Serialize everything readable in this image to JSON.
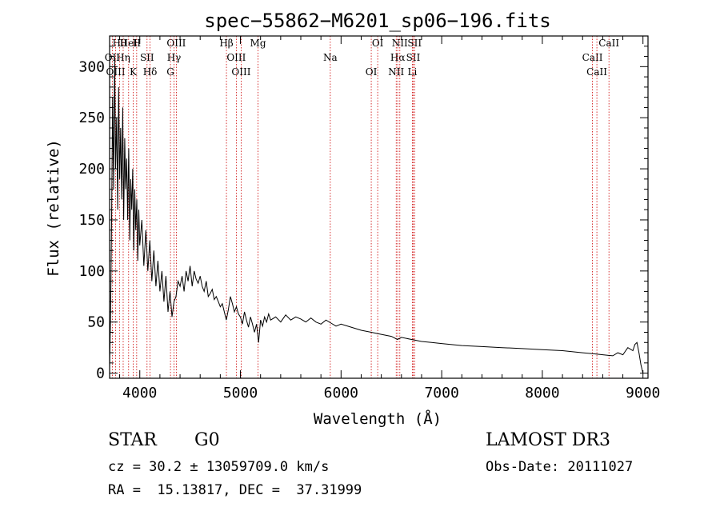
{
  "chart_data": {
    "type": "line",
    "title": "spec−55862−M6201_sp06−196.fits",
    "xlabel": "Wavelength (Å)",
    "ylabel": "Flux (relative)",
    "xlim": [
      3700,
      9050
    ],
    "ylim": [
      -5,
      330
    ],
    "xticks": [
      {
        "value": 4000,
        "label": "4000"
      },
      {
        "value": 5000,
        "label": "5000"
      },
      {
        "value": 6000,
        "label": "6000"
      },
      {
        "value": 7000,
        "label": "7000"
      },
      {
        "value": 8000,
        "label": "8000"
      },
      {
        "value": 9000,
        "label": "9000"
      }
    ],
    "yticks": [
      {
        "value": 0,
        "label": "0"
      },
      {
        "value": 50,
        "label": "50"
      },
      {
        "value": 100,
        "label": "100"
      },
      {
        "value": 150,
        "label": "150"
      },
      {
        "value": 200,
        "label": "200"
      },
      {
        "value": 250,
        "label": "250"
      },
      {
        "value": 300,
        "label": "300"
      }
    ],
    "series": [
      {
        "name": "flux",
        "x": [
          3700,
          3710,
          3720,
          3730,
          3740,
          3750,
          3760,
          3770,
          3780,
          3790,
          3800,
          3810,
          3820,
          3830,
          3840,
          3850,
          3860,
          3870,
          3880,
          3890,
          3900,
          3910,
          3920,
          3930,
          3940,
          3950,
          3960,
          3970,
          3980,
          3990,
          4000,
          4020,
          4040,
          4060,
          4080,
          4100,
          4120,
          4140,
          4160,
          4180,
          4200,
          4220,
          4240,
          4260,
          4280,
          4300,
          4320,
          4340,
          4360,
          4380,
          4400,
          4420,
          4440,
          4460,
          4480,
          4500,
          4520,
          4540,
          4560,
          4580,
          4600,
          4620,
          4640,
          4660,
          4680,
          4700,
          4720,
          4740,
          4760,
          4780,
          4800,
          4820,
          4840,
          4860,
          4880,
          4900,
          4920,
          4940,
          4960,
          4980,
          5000,
          5020,
          5040,
          5060,
          5080,
          5100,
          5120,
          5140,
          5160,
          5180,
          5200,
          5220,
          5240,
          5260,
          5280,
          5300,
          5350,
          5400,
          5450,
          5500,
          5550,
          5600,
          5650,
          5700,
          5750,
          5800,
          5850,
          5900,
          5950,
          6000,
          6100,
          6200,
          6300,
          6400,
          6500,
          6560,
          6600,
          6700,
          6800,
          6900,
          7000,
          7200,
          7400,
          7600,
          7800,
          8000,
          8200,
          8400,
          8500,
          8600,
          8700,
          8750,
          8800,
          8850,
          8900,
          8920,
          8940,
          8960,
          8980,
          9000
        ],
        "values": [
          5,
          60,
          150,
          270,
          180,
          310,
          200,
          250,
          160,
          280,
          190,
          240,
          170,
          260,
          150,
          230,
          180,
          210,
          150,
          220,
          130,
          190,
          160,
          200,
          120,
          180,
          140,
          170,
          110,
          160,
          125,
          150,
          105,
          140,
          100,
          130,
          90,
          120,
          85,
          110,
          80,
          100,
          70,
          95,
          60,
          80,
          55,
          70,
          75,
          90,
          85,
          95,
          80,
          100,
          90,
          105,
          85,
          100,
          92,
          88,
          95,
          85,
          80,
          90,
          75,
          78,
          82,
          72,
          75,
          70,
          65,
          68,
          60,
          52,
          62,
          75,
          68,
          60,
          65,
          58,
          55,
          48,
          60,
          52,
          45,
          55,
          48,
          40,
          48,
          30,
          52,
          46,
          55,
          50,
          58,
          52,
          55,
          50,
          57,
          52,
          55,
          53,
          50,
          54,
          50,
          48,
          52,
          49,
          46,
          48,
          45,
          42,
          40,
          38,
          36,
          33,
          35,
          33,
          31,
          30,
          29,
          27,
          26,
          25,
          24,
          23,
          22,
          20,
          19,
          18,
          17,
          20,
          18,
          25,
          22,
          28,
          30,
          20,
          8,
          0
        ]
      }
    ],
    "spectral_lines": [
      {
        "label": "Hθ",
        "wavelength": 3798
      },
      {
        "label": "OII",
        "wavelength": 3727
      },
      {
        "label": "OIII",
        "wavelength": 3760
      },
      {
        "label": "HeI",
        "wavelength": 3889
      },
      {
        "label": "Hη",
        "wavelength": 3835
      },
      {
        "label": "K",
        "wavelength": 3934
      },
      {
        "label": "H",
        "wavelength": 3969
      },
      {
        "label": "SII",
        "wavelength": 4072
      },
      {
        "label": "Hδ",
        "wavelength": 4102
      },
      {
        "label": "OIII",
        "wavelength": 4363
      },
      {
        "label": "Hγ",
        "wavelength": 4340
      },
      {
        "label": "G",
        "wavelength": 4305
      },
      {
        "label": "Hβ",
        "wavelength": 4861
      },
      {
        "label": "OIII",
        "wavelength": 4959
      },
      {
        "label": "OIII",
        "wavelength": 5007
      },
      {
        "label": "Mg",
        "wavelength": 5175
      },
      {
        "label": "Na",
        "wavelength": 5893
      },
      {
        "label": "OI",
        "wavelength": 6300
      },
      {
        "label": "OI",
        "wavelength": 6364
      },
      {
        "label": "Hα",
        "wavelength": 6563
      },
      {
        "label": "NII",
        "wavelength": 6548
      },
      {
        "label": "NII",
        "wavelength": 6584
      },
      {
        "label": "SII",
        "wavelength": 6717
      },
      {
        "label": "Li",
        "wavelength": 6708
      },
      {
        "label": "SII",
        "wavelength": 6731
      },
      {
        "label": "CaII",
        "wavelength": 8498
      },
      {
        "label": "CaII",
        "wavelength": 8542
      },
      {
        "label": "CaII",
        "wavelength": 8662
      }
    ]
  },
  "info": {
    "object_class": "STAR",
    "subclass": "G0",
    "survey": "LAMOST DR3",
    "cz": "cz = 30.2 ± 13059709.0 km/s",
    "obs_date": "Obs-Date: 20111027",
    "coords": "RA =  15.13817, DEC =  37.31999"
  },
  "colors": {
    "line_marker": "#cc0000",
    "spectrum": "#000000",
    "axis": "#000000"
  }
}
